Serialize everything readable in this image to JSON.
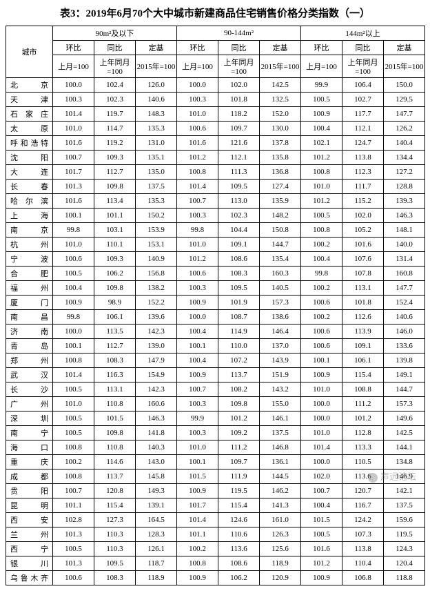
{
  "title": "表3：2019年6月70个大中城市新建商品住宅销售价格分类指数（一）",
  "header": {
    "city": "城市",
    "group_a": "90m²及以下",
    "group_b": "90-144m²",
    "group_c": "144m²以上",
    "hb": "环比",
    "tb": "同比",
    "dj": "定基",
    "hb_sub": "上月=100",
    "tb_sub": "上年同月=100",
    "dj_sub": "2015年=100"
  },
  "columns": [
    "city",
    "a1",
    "a2",
    "a3",
    "b1",
    "b2",
    "b3",
    "c1",
    "c2",
    "c3"
  ],
  "rows": [
    {
      "city": "北京",
      "a1": "100.0",
      "a2": "102.4",
      "a3": "126.0",
      "b1": "100.0",
      "b2": "102.0",
      "b3": "142.5",
      "c1": "99.9",
      "c2": "106.4",
      "c3": "150.0"
    },
    {
      "city": "天津",
      "a1": "100.3",
      "a2": "102.3",
      "a3": "140.6",
      "b1": "100.3",
      "b2": "101.8",
      "b3": "132.5",
      "c1": "100.5",
      "c2": "102.7",
      "c3": "129.5"
    },
    {
      "city": "石家庄",
      "a1": "101.4",
      "a2": "119.7",
      "a3": "148.3",
      "b1": "101.0",
      "b2": "118.2",
      "b3": "152.0",
      "c1": "100.9",
      "c2": "117.7",
      "c3": "147.7"
    },
    {
      "city": "太原",
      "a1": "101.0",
      "a2": "114.7",
      "a3": "135.3",
      "b1": "100.6",
      "b2": "109.7",
      "b3": "130.0",
      "c1": "100.4",
      "c2": "112.1",
      "c3": "126.2"
    },
    {
      "city": "呼和浩特",
      "a1": "101.6",
      "a2": "119.2",
      "a3": "131.0",
      "b1": "101.6",
      "b2": "121.6",
      "b3": "137.8",
      "c1": "102.1",
      "c2": "124.7",
      "c3": "140.4"
    },
    {
      "city": "沈阳",
      "a1": "100.7",
      "a2": "109.3",
      "a3": "135.1",
      "b1": "101.2",
      "b2": "112.1",
      "b3": "135.8",
      "c1": "101.2",
      "c2": "113.8",
      "c3": "134.4"
    },
    {
      "city": "大连",
      "a1": "101.7",
      "a2": "112.7",
      "a3": "135.0",
      "b1": "100.8",
      "b2": "111.3",
      "b3": "136.8",
      "c1": "100.8",
      "c2": "112.3",
      "c3": "127.2"
    },
    {
      "city": "长春",
      "a1": "101.3",
      "a2": "109.8",
      "a3": "137.5",
      "b1": "101.4",
      "b2": "109.5",
      "b3": "127.4",
      "c1": "101.0",
      "c2": "111.7",
      "c3": "128.8"
    },
    {
      "city": "哈尔滨",
      "a1": "101.6",
      "a2": "113.4",
      "a3": "135.3",
      "b1": "100.7",
      "b2": "113.0",
      "b3": "135.9",
      "c1": "101.2",
      "c2": "115.2",
      "c3": "139.3"
    },
    {
      "city": "上海",
      "a1": "100.1",
      "a2": "101.1",
      "a3": "150.2",
      "b1": "100.3",
      "b2": "102.3",
      "b3": "148.2",
      "c1": "100.5",
      "c2": "102.0",
      "c3": "146.3"
    },
    {
      "city": "南京",
      "a1": "99.8",
      "a2": "103.1",
      "a3": "153.9",
      "b1": "99.8",
      "b2": "104.4",
      "b3": "150.8",
      "c1": "100.8",
      "c2": "105.2",
      "c3": "148.1"
    },
    {
      "city": "杭州",
      "a1": "101.0",
      "a2": "110.1",
      "a3": "153.1",
      "b1": "101.0",
      "b2": "109.1",
      "b3": "144.7",
      "c1": "100.2",
      "c2": "101.6",
      "c3": "140.0"
    },
    {
      "city": "宁波",
      "a1": "100.6",
      "a2": "109.3",
      "a3": "140.9",
      "b1": "101.2",
      "b2": "108.6",
      "b3": "135.4",
      "c1": "100.4",
      "c2": "107.6",
      "c3": "131.4"
    },
    {
      "city": "合肥",
      "a1": "100.5",
      "a2": "106.2",
      "a3": "156.8",
      "b1": "100.6",
      "b2": "108.3",
      "b3": "160.3",
      "c1": "99.8",
      "c2": "107.8",
      "c3": "160.8"
    },
    {
      "city": "福州",
      "a1": "100.4",
      "a2": "109.8",
      "a3": "138.2",
      "b1": "100.3",
      "b2": "109.5",
      "b3": "140.5",
      "c1": "100.2",
      "c2": "113.1",
      "c3": "147.7"
    },
    {
      "city": "厦门",
      "a1": "100.9",
      "a2": "98.9",
      "a3": "152.2",
      "b1": "100.9",
      "b2": "101.9",
      "b3": "157.3",
      "c1": "100.6",
      "c2": "101.8",
      "c3": "152.4"
    },
    {
      "city": "南昌",
      "a1": "99.8",
      "a2": "106.1",
      "a3": "139.6",
      "b1": "100.0",
      "b2": "108.7",
      "b3": "138.6",
      "c1": "100.2",
      "c2": "112.6",
      "c3": "140.6"
    },
    {
      "city": "济南",
      "a1": "100.0",
      "a2": "113.5",
      "a3": "142.3",
      "b1": "100.4",
      "b2": "114.9",
      "b3": "146.4",
      "c1": "100.6",
      "c2": "113.9",
      "c3": "146.0"
    },
    {
      "city": "青岛",
      "a1": "100.1",
      "a2": "112.7",
      "a3": "139.0",
      "b1": "100.1",
      "b2": "110.0",
      "b3": "137.0",
      "c1": "100.6",
      "c2": "109.1",
      "c3": "133.6"
    },
    {
      "city": "郑州",
      "a1": "100.8",
      "a2": "108.3",
      "a3": "147.9",
      "b1": "100.4",
      "b2": "107.2",
      "b3": "143.9",
      "c1": "100.1",
      "c2": "106.1",
      "c3": "139.8"
    },
    {
      "city": "武汉",
      "a1": "101.4",
      "a2": "116.3",
      "a3": "154.9",
      "b1": "100.9",
      "b2": "113.7",
      "b3": "151.9",
      "c1": "100.9",
      "c2": "115.4",
      "c3": "149.1"
    },
    {
      "city": "长沙",
      "a1": "100.5",
      "a2": "113.1",
      "a3": "142.3",
      "b1": "100.7",
      "b2": "108.2",
      "b3": "143.2",
      "c1": "101.0",
      "c2": "108.8",
      "c3": "144.7"
    },
    {
      "city": "广州",
      "a1": "101.0",
      "a2": "110.8",
      "a3": "160.6",
      "b1": "100.3",
      "b2": "109.8",
      "b3": "155.0",
      "c1": "100.0",
      "c2": "111.2",
      "c3": "157.3"
    },
    {
      "city": "深圳",
      "a1": "100.5",
      "a2": "101.5",
      "a3": "146.3",
      "b1": "99.9",
      "b2": "101.2",
      "b3": "146.1",
      "c1": "100.0",
      "c2": "101.2",
      "c3": "149.6"
    },
    {
      "city": "南宁",
      "a1": "100.5",
      "a2": "109.8",
      "a3": "141.8",
      "b1": "100.3",
      "b2": "109.2",
      "b3": "137.5",
      "c1": "101.0",
      "c2": "112.8",
      "c3": "142.5"
    },
    {
      "city": "海口",
      "a1": "100.8",
      "a2": "110.8",
      "a3": "140.3",
      "b1": "101.0",
      "b2": "111.2",
      "b3": "146.8",
      "c1": "101.4",
      "c2": "113.3",
      "c3": "144.1"
    },
    {
      "city": "重庆",
      "a1": "100.2",
      "a2": "114.6",
      "a3": "143.0",
      "b1": "100.1",
      "b2": "109.7",
      "b3": "136.1",
      "c1": "100.0",
      "c2": "110.5",
      "c3": "134.8"
    },
    {
      "city": "成都",
      "a1": "100.8",
      "a2": "113.7",
      "a3": "145.8",
      "b1": "101.5",
      "b2": "111.9",
      "b3": "144.5",
      "c1": "102.0",
      "c2": "113.6",
      "c3": "146.9"
    },
    {
      "city": "贵阳",
      "a1": "100.7",
      "a2": "120.8",
      "a3": "149.3",
      "b1": "100.9",
      "b2": "119.5",
      "b3": "146.2",
      "c1": "100.7",
      "c2": "120.7",
      "c3": "142.1"
    },
    {
      "city": "昆明",
      "a1": "101.1",
      "a2": "115.4",
      "a3": "139.1",
      "b1": "101.7",
      "b2": "115.4",
      "b3": "141.3",
      "c1": "100.4",
      "c2": "116.7",
      "c3": "137.5"
    },
    {
      "city": "西安",
      "a1": "102.8",
      "a2": "127.3",
      "a3": "164.5",
      "b1": "101.4",
      "b2": "124.6",
      "b3": "161.0",
      "c1": "101.5",
      "c2": "124.2",
      "c3": "159.6"
    },
    {
      "city": "兰州",
      "a1": "101.3",
      "a2": "110.3",
      "a3": "128.3",
      "b1": "101.1",
      "b2": "110.6",
      "b3": "126.3",
      "c1": "100.5",
      "c2": "107.3",
      "c3": "119.5"
    },
    {
      "city": "西宁",
      "a1": "100.5",
      "a2": "110.3",
      "a3": "126.1",
      "b1": "100.2",
      "b2": "113.6",
      "b3": "125.6",
      "c1": "101.6",
      "c2": "113.8",
      "c3": "124.3"
    },
    {
      "city": "银川",
      "a1": "101.3",
      "a2": "109.5",
      "a3": "118.7",
      "b1": "100.8",
      "b2": "108.6",
      "b3": "118.9",
      "c1": "101.2",
      "c2": "110.4",
      "c3": "120.4"
    },
    {
      "city": "乌鲁木齐",
      "a1": "100.6",
      "a2": "108.3",
      "a3": "118.9",
      "b1": "100.9",
      "b2": "106.2",
      "b3": "120.9",
      "c1": "100.9",
      "c2": "106.8",
      "c3": "118.8"
    }
  ],
  "watermark": "声远论坛",
  "style": {
    "bg": "#ffffff",
    "border": "#000000",
    "font_body": 11,
    "font_title": 15
  }
}
